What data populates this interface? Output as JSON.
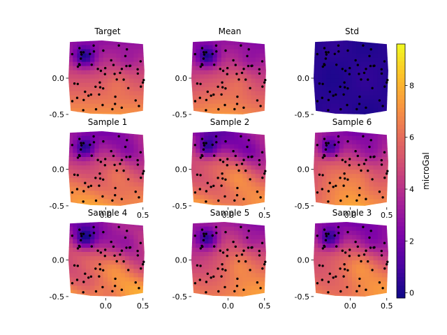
{
  "figure": {
    "colormap": "plasma",
    "colorbar": {
      "label": "microGal",
      "vmin": -0.2,
      "vmax": 9.6,
      "ticks": [
        0,
        2,
        4,
        6,
        8
      ]
    }
  },
  "chart_data": [
    {
      "type": "heatmap",
      "title": "Target",
      "field": "target",
      "xlim": [
        -0.5,
        0.55
      ],
      "ylim": [
        -0.52,
        0.52
      ],
      "xticks": [],
      "yticks": [
        0.0,
        -0.5
      ]
    },
    {
      "type": "heatmap",
      "title": "Mean",
      "field": "mean",
      "xlim": [
        -0.5,
        0.55
      ],
      "ylim": [
        -0.52,
        0.52
      ],
      "xticks": [],
      "yticks": [
        0.0,
        -0.5
      ]
    },
    {
      "type": "heatmap",
      "title": "Std",
      "field": "std",
      "xlim": [
        -0.5,
        0.55
      ],
      "ylim": [
        -0.52,
        0.52
      ],
      "xticks": [],
      "yticks": [
        0.0,
        -0.5
      ]
    },
    {
      "type": "heatmap",
      "title": "Sample 1",
      "field": "sample1",
      "xlim": [
        -0.5,
        0.55
      ],
      "ylim": [
        -0.52,
        0.52
      ],
      "xticks": [
        0.0,
        0.5
      ],
      "yticks": [
        0.0,
        -0.5
      ]
    },
    {
      "type": "heatmap",
      "title": "Sample 2",
      "field": "sample2",
      "xlim": [
        -0.5,
        0.55
      ],
      "ylim": [
        -0.52,
        0.52
      ],
      "xticks": [
        0.0,
        0.5
      ],
      "yticks": [
        0.0,
        -0.5
      ]
    },
    {
      "type": "heatmap",
      "title": "Sample 6",
      "field": "sample3",
      "xlim": [
        -0.5,
        0.55
      ],
      "ylim": [
        -0.52,
        0.52
      ],
      "xticks": [
        0.0,
        0.5
      ],
      "yticks": [
        0.0,
        -0.5
      ]
    },
    {
      "type": "heatmap",
      "title": "Sample 4",
      "field": "sample4",
      "xlim": [
        -0.5,
        0.55
      ],
      "ylim": [
        -0.52,
        0.52
      ],
      "xticks": [
        0.0,
        0.5
      ],
      "yticks": [
        0.0,
        -0.5
      ]
    },
    {
      "type": "heatmap",
      "title": "Sample 5",
      "field": "sample5",
      "xlim": [
        -0.5,
        0.55
      ],
      "ylim": [
        -0.52,
        0.52
      ],
      "xticks": [
        0.0,
        0.5
      ],
      "yticks": [
        0.0,
        -0.5
      ]
    },
    {
      "type": "heatmap",
      "title": "Sample 3",
      "field": "sample6",
      "xlim": [
        -0.5,
        0.55
      ],
      "ylim": [
        -0.52,
        0.52
      ],
      "xticks": [
        0.0,
        0.5
      ],
      "yticks": [
        0.0,
        -0.5
      ]
    }
  ]
}
